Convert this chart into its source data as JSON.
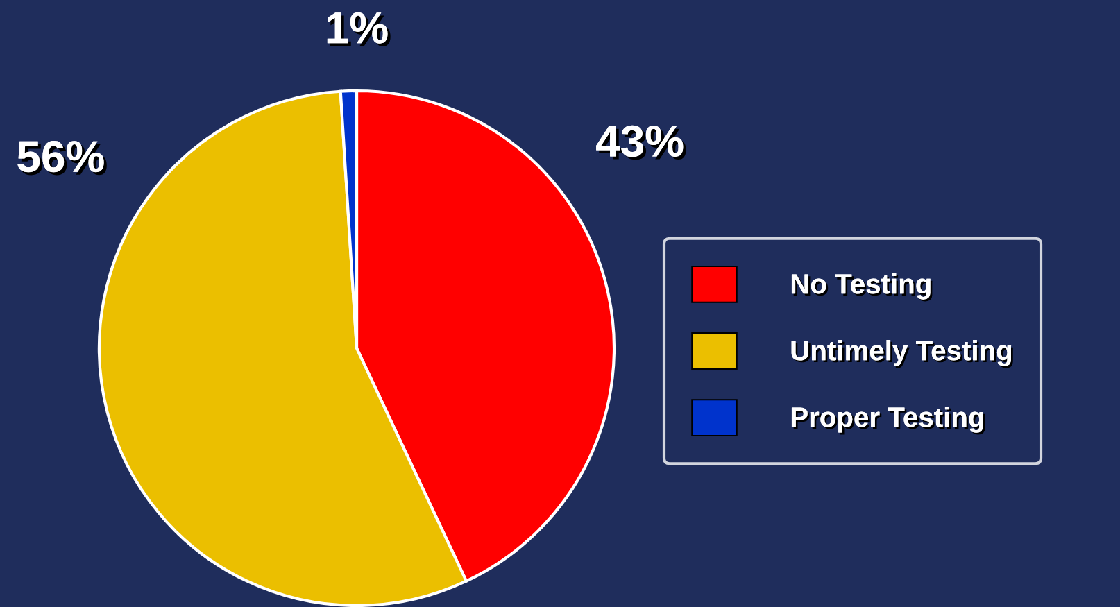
{
  "chart_data": {
    "type": "pie",
    "categories": [
      "No Testing",
      "Untimely Testing",
      "Proper Testing"
    ],
    "values": [
      43,
      56,
      1
    ],
    "colors": [
      "#ff0000",
      "#ebbf00",
      "#0033cc"
    ],
    "value_labels": [
      "43%",
      "56%",
      "1%"
    ],
    "legend": "right"
  }
}
